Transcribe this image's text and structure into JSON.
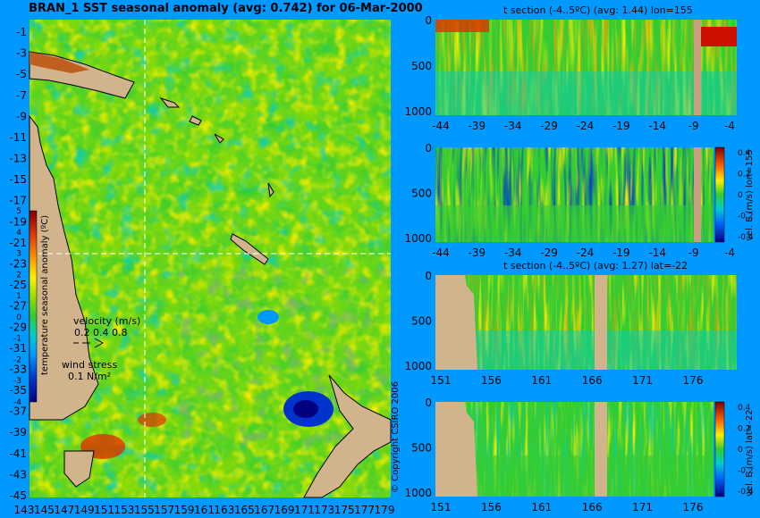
{
  "main_title": "BRAN_1 SST seasonal anomaly (avg: 0.742) for 06-Mar-2000",
  "map": {
    "lat_ticks": [
      "-1",
      "-3",
      "-5",
      "-7",
      "-9",
      "-11",
      "-13",
      "-15",
      "-17",
      "-19",
      "-21",
      "-23",
      "-25",
      "-27",
      "-29",
      "-31",
      "-33",
      "-35",
      "-37",
      "-39",
      "-41",
      "-43",
      "-45"
    ],
    "lon_ticks": [
      "143",
      "145",
      "147",
      "149",
      "151",
      "153",
      "155",
      "157",
      "159",
      "161",
      "163",
      "165",
      "167",
      "169",
      "171",
      "173",
      "175",
      "177",
      "179"
    ],
    "colorbar_label": "temperature seasonal anomaly (ºC)",
    "colorbar_ticks": [
      "5",
      "4",
      "3",
      "2",
      "1",
      "0",
      "-1",
      "-2",
      "-3",
      "-4"
    ],
    "velocity_label": "velocity (m/s)",
    "velocity_values": "0.2 0.4 0.8",
    "wind_label": "wind stress",
    "wind_value": "0.1 N/m²",
    "copyright": "© Copyright CSIRO 2006"
  },
  "colors": {
    "background": "#0099ff",
    "land": "#d2b48c",
    "anomaly_scale": [
      "#000080",
      "#0033cc",
      "#0099ff",
      "#00cccc",
      "#33cc33",
      "#99dd00",
      "#ffee00",
      "#ff9900",
      "#dd3300",
      "#800000"
    ]
  },
  "chart_data": [
    {
      "type": "heatmap",
      "title": "t section (-4..5ºC) (avg: 1.44) lon=155",
      "x_ticks": [
        "-44",
        "-39",
        "-34",
        "-29",
        "-24",
        "-19",
        "-14",
        "-9",
        "-4"
      ],
      "y_ticks": [
        "0",
        "500",
        "1000"
      ],
      "ylim": [
        1050,
        0
      ],
      "avg": 1.44
    },
    {
      "type": "heatmap",
      "title": "",
      "x_ticks": [
        "-44",
        "-39",
        "-34",
        "-29",
        "-24",
        "-19",
        "-14",
        "-9",
        "-4"
      ],
      "y_ticks": [
        "0",
        "500",
        "1000"
      ],
      "ylim": [
        1050,
        0
      ],
      "side_label": "vel. E (m/s) lon=155",
      "colorbar_ticks": [
        "0.4",
        "0.2",
        "0",
        "-0.2",
        "-0.4"
      ]
    },
    {
      "type": "heatmap",
      "title": "t section (-4..5ºC) (avg: 1.27) lat=-22",
      "x_ticks": [
        "151",
        "156",
        "161",
        "166",
        "171",
        "176"
      ],
      "y_ticks": [
        "0",
        "500",
        "1000"
      ],
      "ylim": [
        1050,
        0
      ],
      "avg": 1.27
    },
    {
      "type": "heatmap",
      "title": "",
      "x_ticks": [
        "151",
        "156",
        "161",
        "166",
        "171",
        "176"
      ],
      "y_ticks": [
        "0",
        "500",
        "1000"
      ],
      "ylim": [
        1050,
        0
      ],
      "side_label": "vel. E (m/s) lat=-22",
      "colorbar_ticks": [
        "0.4",
        "0.2",
        "0",
        "-0.2",
        "-0.4"
      ]
    }
  ]
}
